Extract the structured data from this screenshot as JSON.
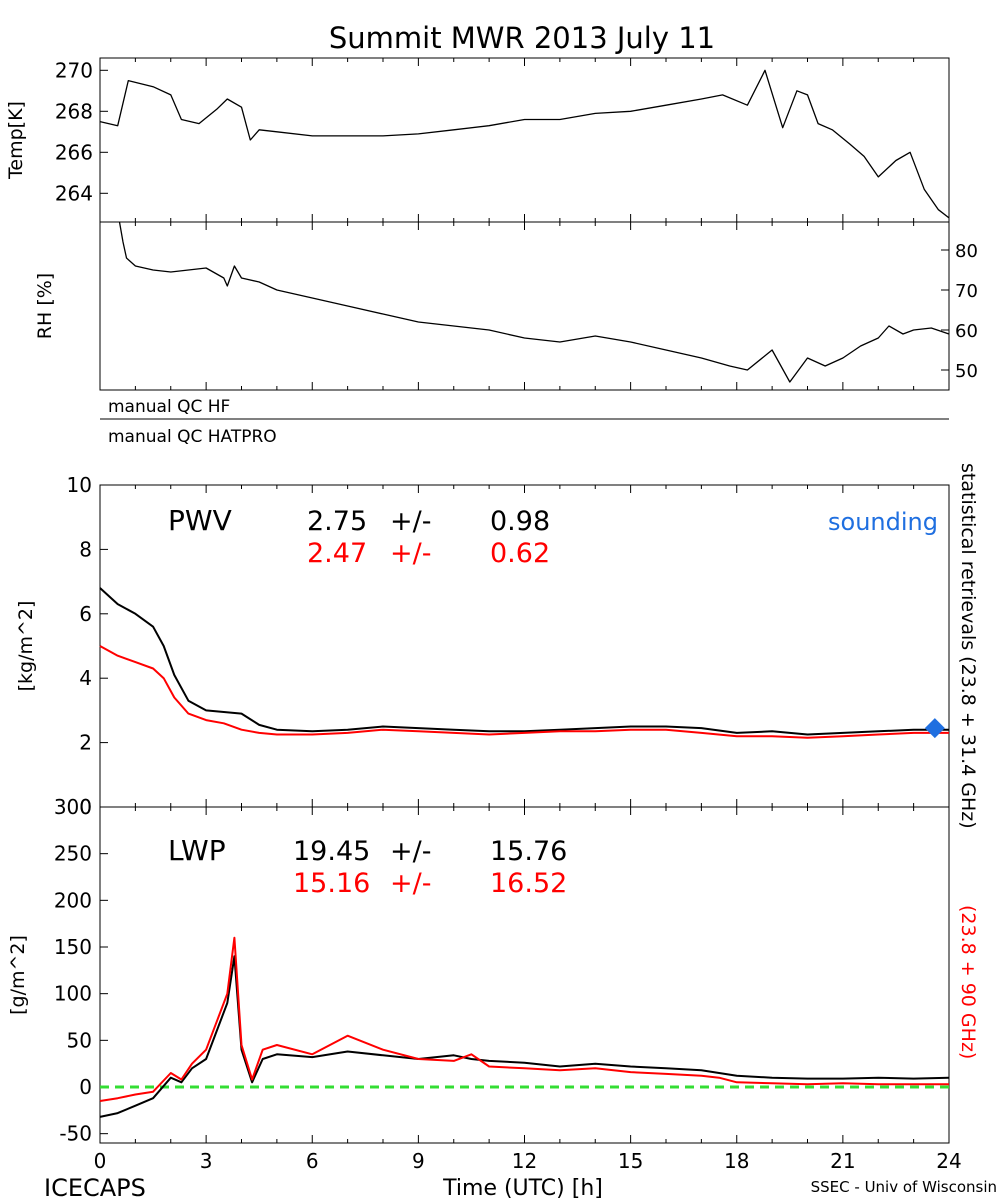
{
  "title": "Summit MWR 2013 July 11",
  "footer": {
    "left": "ICECAPS",
    "right": "SSEC - Univ of Wisconsin"
  },
  "colors": {
    "primary": "#000000",
    "secondary": "#ff0000",
    "sounding": "#1f6fe0",
    "zero_line": "#33dd33"
  },
  "side_labels": {
    "black": "statistical retrievals (23.8 + 31.4 GHz)",
    "red": "(23.8 + 90 GHz)"
  },
  "qc": {
    "hf": "manual QC HF",
    "hatpro": "manual QC HATPRO"
  },
  "chart_data": [
    {
      "type": "line",
      "panel": "temperature",
      "ylabel": "Temp[K]",
      "ylim": [
        262.6,
        270.6
      ],
      "yticks": [
        "270",
        "268",
        "266",
        "264"
      ],
      "xlim": [
        0,
        24
      ],
      "series": [
        {
          "color": "#000000",
          "x": [
            0,
            0.5,
            0.8,
            1.5,
            2.0,
            2.3,
            2.8,
            3.3,
            3.6,
            4.0,
            4.25,
            4.5,
            5,
            6,
            7,
            8,
            9,
            10,
            11,
            12,
            13,
            14,
            15,
            16,
            17,
            17.6,
            18.3,
            18.8,
            19.3,
            19.7,
            20.0,
            20.3,
            20.7,
            21.2,
            21.6,
            22.0,
            22.5,
            22.9,
            23.3,
            23.7,
            24
          ],
          "y": [
            267.5,
            267.3,
            269.5,
            269.2,
            268.8,
            267.6,
            267.4,
            268.1,
            268.6,
            268.2,
            266.6,
            267.1,
            267.0,
            266.8,
            266.8,
            266.8,
            266.9,
            267.1,
            267.3,
            267.6,
            267.6,
            267.9,
            268.0,
            268.3,
            268.6,
            268.8,
            268.3,
            270.0,
            267.2,
            269.0,
            268.8,
            267.4,
            267.1,
            266.4,
            265.8,
            264.8,
            265.6,
            266.0,
            264.2,
            263.2,
            262.8
          ]
        }
      ]
    },
    {
      "type": "line",
      "panel": "relative-humidity",
      "ylabel": "RH [%]",
      "ylim": [
        45,
        87
      ],
      "yticks": [
        "80",
        "70",
        "60",
        "50"
      ],
      "xlim": [
        0,
        24
      ],
      "series": [
        {
          "color": "#000000",
          "x": [
            0.55,
            0.65,
            0.75,
            1.0,
            1.5,
            2.0,
            3.0,
            3.5,
            3.6,
            3.8,
            4.0,
            4.5,
            5,
            6,
            7,
            8,
            9,
            10,
            11,
            12,
            13,
            14,
            15,
            16,
            17,
            17.8,
            18.3,
            19.0,
            19.5,
            20.0,
            20.5,
            21.0,
            21.5,
            22.0,
            22.3,
            22.7,
            23.0,
            23.5,
            24
          ],
          "y": [
            87,
            82,
            78,
            76,
            75,
            74.5,
            75.5,
            73,
            71,
            76,
            73,
            72,
            70,
            68,
            66,
            64,
            62,
            61,
            60,
            58,
            57,
            58.5,
            57,
            55,
            53,
            51,
            50,
            55,
            47,
            53,
            51,
            53,
            56,
            58,
            61,
            59,
            60,
            60.5,
            59
          ]
        }
      ]
    },
    {
      "type": "line",
      "panel": "pwv",
      "ylabel": "[kg/m^2]",
      "label": "PWV",
      "stats": [
        {
          "color": "#000000",
          "mean": "2.75",
          "pm": "+/-",
          "std": "0.98"
        },
        {
          "color": "#ff0000",
          "mean": "2.47",
          "pm": "+/-",
          "std": "0.62"
        }
      ],
      "legend": "sounding",
      "ylim": [
        0,
        10
      ],
      "yticks": [
        "10",
        "8",
        "6",
        "4",
        "2",
        "0"
      ],
      "xlim": [
        0,
        24
      ],
      "series": [
        {
          "color": "#000000",
          "x": [
            0,
            0.5,
            1.0,
            1.5,
            1.8,
            2.1,
            2.5,
            3.0,
            3.5,
            4.0,
            4.5,
            5,
            6,
            7,
            8,
            9,
            10,
            11,
            12,
            13,
            14,
            15,
            16,
            17,
            18,
            19,
            20,
            21,
            22,
            23,
            24
          ],
          "y": [
            6.8,
            6.3,
            6.0,
            5.6,
            5.0,
            4.1,
            3.3,
            3.0,
            2.95,
            2.9,
            2.55,
            2.4,
            2.35,
            2.4,
            2.5,
            2.45,
            2.4,
            2.35,
            2.35,
            2.4,
            2.45,
            2.5,
            2.5,
            2.45,
            2.3,
            2.35,
            2.25,
            2.3,
            2.35,
            2.4,
            2.4
          ]
        },
        {
          "color": "#ff0000",
          "x": [
            0,
            0.5,
            1.0,
            1.5,
            1.8,
            2.1,
            2.5,
            3.0,
            3.5,
            4.0,
            4.5,
            5,
            6,
            7,
            8,
            9,
            10,
            11,
            12,
            13,
            14,
            15,
            16,
            17,
            18,
            19,
            20,
            21,
            22,
            23,
            24
          ],
          "y": [
            5.0,
            4.7,
            4.5,
            4.3,
            4.0,
            3.4,
            2.9,
            2.7,
            2.6,
            2.4,
            2.3,
            2.25,
            2.25,
            2.3,
            2.4,
            2.35,
            2.3,
            2.25,
            2.3,
            2.35,
            2.35,
            2.4,
            2.4,
            2.3,
            2.2,
            2.2,
            2.15,
            2.2,
            2.25,
            2.3,
            2.3
          ]
        }
      ],
      "sounding_point": {
        "x": 23.6,
        "y": 2.45
      }
    },
    {
      "type": "line",
      "panel": "lwp",
      "ylabel": "[g/m^2]",
      "label": "LWP",
      "stats": [
        {
          "color": "#000000",
          "mean": "19.45",
          "pm": "+/-",
          "std": "15.76"
        },
        {
          "color": "#ff0000",
          "mean": "15.16",
          "pm": "+/-",
          "std": "16.52"
        }
      ],
      "ylim": [
        -60,
        300
      ],
      "yticks": [
        "300",
        "250",
        "200",
        "150",
        "100",
        "50",
        "0",
        "-50"
      ],
      "xlim": [
        0,
        24
      ],
      "xticks": [
        "0",
        "3",
        "6",
        "9",
        "12",
        "15",
        "18",
        "21",
        "24"
      ],
      "xlabel": "Time (UTC) [h]",
      "zero_line": 0,
      "series": [
        {
          "color": "#000000",
          "x": [
            0,
            0.5,
            1.0,
            1.5,
            2.0,
            2.3,
            2.6,
            3.0,
            3.3,
            3.6,
            3.8,
            4.0,
            4.3,
            4.6,
            5,
            6,
            7,
            8,
            9,
            10,
            10.5,
            11,
            12,
            13,
            14,
            15,
            16,
            17,
            17.5,
            18,
            19,
            20,
            21,
            22,
            23,
            24
          ],
          "y": [
            -32,
            -28,
            -20,
            -12,
            10,
            5,
            20,
            30,
            60,
            90,
            140,
            40,
            5,
            30,
            35,
            32,
            38,
            34,
            30,
            34,
            30,
            28,
            26,
            22,
            25,
            22,
            20,
            18,
            15,
            12,
            10,
            9,
            9,
            10,
            9,
            10
          ]
        },
        {
          "color": "#ff0000",
          "x": [
            0,
            0.5,
            1.0,
            1.5,
            2.0,
            2.3,
            2.6,
            3.0,
            3.3,
            3.6,
            3.8,
            4.0,
            4.3,
            4.6,
            5,
            6,
            7,
            8,
            9,
            10,
            10.5,
            11,
            12,
            13,
            14,
            15,
            16,
            17,
            17.5,
            18,
            19,
            20,
            21,
            22,
            23,
            24
          ],
          "y": [
            -15,
            -12,
            -8,
            -5,
            15,
            8,
            25,
            40,
            70,
            100,
            160,
            45,
            8,
            40,
            45,
            35,
            55,
            40,
            30,
            28,
            35,
            22,
            20,
            18,
            20,
            16,
            14,
            12,
            10,
            5,
            4,
            3,
            4,
            3,
            3,
            3
          ]
        }
      ]
    }
  ]
}
